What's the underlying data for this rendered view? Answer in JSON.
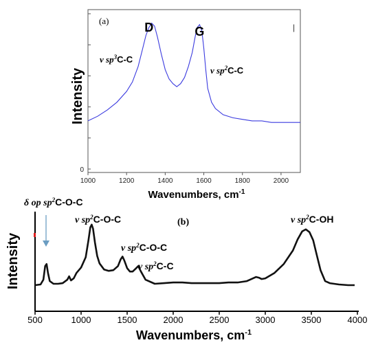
{
  "chart_data": [
    {
      "type": "line",
      "panel_label": "(a)",
      "xlabel": "Wavenumbers, cm",
      "xlabel_sup": "-1",
      "ylabel": "Intensity",
      "xlim": [
        1000,
        2100
      ],
      "ylim": [
        0,
        1.0
      ],
      "x_ticks": [
        1000,
        1200,
        1400,
        1600,
        1800,
        2000
      ],
      "y_ticks": [
        0,
        0.2,
        0.4,
        0.6,
        0.8,
        1.0
      ],
      "y_tick_text": "0",
      "grid": false,
      "line_color": "#3a3adf",
      "peaks": [
        {
          "label": "D",
          "x": 1330
        },
        {
          "label": "G",
          "x": 1578
        }
      ],
      "annotations": [
        {
          "greek": "ν ",
          "italic": "sp",
          "sup": "3",
          "rest": "C-C"
        },
        {
          "greek": "ν ",
          "italic": "sp",
          "sup": "2",
          "rest": "C-C"
        }
      ],
      "x": [
        1000,
        1050,
        1100,
        1150,
        1200,
        1230,
        1260,
        1280,
        1300,
        1315,
        1330,
        1345,
        1360,
        1380,
        1400,
        1420,
        1440,
        1460,
        1480,
        1500,
        1520,
        1540,
        1555,
        1565,
        1578,
        1590,
        1600,
        1610,
        1620,
        1640,
        1660,
        1700,
        1750,
        1800,
        1850,
        1900,
        1950,
        2000,
        2050,
        2100
      ],
      "y": [
        0.31,
        0.34,
        0.38,
        0.43,
        0.5,
        0.56,
        0.66,
        0.76,
        0.86,
        0.91,
        0.94,
        0.92,
        0.85,
        0.74,
        0.64,
        0.58,
        0.55,
        0.53,
        0.55,
        0.59,
        0.66,
        0.75,
        0.85,
        0.91,
        0.93,
        0.89,
        0.78,
        0.64,
        0.52,
        0.43,
        0.39,
        0.35,
        0.33,
        0.32,
        0.31,
        0.31,
        0.3,
        0.3,
        0.3,
        0.3
      ]
    },
    {
      "type": "line",
      "panel_label": "(b)",
      "xlabel": "Wavenumbers, cm",
      "xlabel_sup": "-1",
      "ylabel": "Intensity",
      "xlim": [
        500,
        4000
      ],
      "ylim": [
        0,
        1.0
      ],
      "x_ticks": [
        500,
        1000,
        1500,
        2000,
        2500,
        3000,
        3500,
        4000
      ],
      "grid": false,
      "line_color": "#111111",
      "annotations": [
        {
          "greek": "δ op ",
          "italic": "sp",
          "sup": "2",
          "rest": "C-O-C"
        },
        {
          "greek": "ν ",
          "italic": "sp",
          "sup": "2",
          "rest": "C-O-C"
        },
        {
          "greek": "ν ",
          "italic": "sp",
          "sup": "2",
          "rest": "C-O-C"
        },
        {
          "greek": "ν ",
          "italic": "sp",
          "sup": "2",
          "rest": "C-C"
        },
        {
          "greek": "ν ",
          "italic": "sp",
          "sup": "2",
          "rest": "C-OH"
        }
      ],
      "x": [
        500,
        560,
        590,
        610,
        625,
        640,
        660,
        700,
        750,
        800,
        850,
        870,
        890,
        920,
        950,
        1000,
        1050,
        1080,
        1100,
        1115,
        1130,
        1150,
        1175,
        1200,
        1250,
        1300,
        1350,
        1400,
        1430,
        1450,
        1470,
        1500,
        1530,
        1560,
        1590,
        1620,
        1650,
        1700,
        1800,
        1900,
        2000,
        2100,
        2200,
        2300,
        2400,
        2500,
        2600,
        2700,
        2800,
        2850,
        2900,
        2930,
        2960,
        3000,
        3100,
        3200,
        3300,
        3350,
        3400,
        3440,
        3480,
        3520,
        3560,
        3600,
        3650,
        3700,
        3800,
        3900,
        3970
      ],
      "y": [
        0.02,
        0.03,
        0.1,
        0.3,
        0.33,
        0.2,
        0.08,
        0.04,
        0.04,
        0.05,
        0.1,
        0.15,
        0.09,
        0.12,
        0.2,
        0.28,
        0.43,
        0.68,
        0.87,
        0.91,
        0.85,
        0.65,
        0.45,
        0.34,
        0.25,
        0.23,
        0.24,
        0.3,
        0.4,
        0.44,
        0.38,
        0.27,
        0.22,
        0.22,
        0.26,
        0.3,
        0.22,
        0.1,
        0.04,
        0.05,
        0.06,
        0.06,
        0.05,
        0.05,
        0.05,
        0.05,
        0.06,
        0.06,
        0.08,
        0.11,
        0.14,
        0.13,
        0.11,
        0.12,
        0.2,
        0.33,
        0.53,
        0.69,
        0.81,
        0.84,
        0.8,
        0.68,
        0.46,
        0.24,
        0.08,
        0.05,
        0.03,
        0.02,
        0.02
      ]
    }
  ]
}
